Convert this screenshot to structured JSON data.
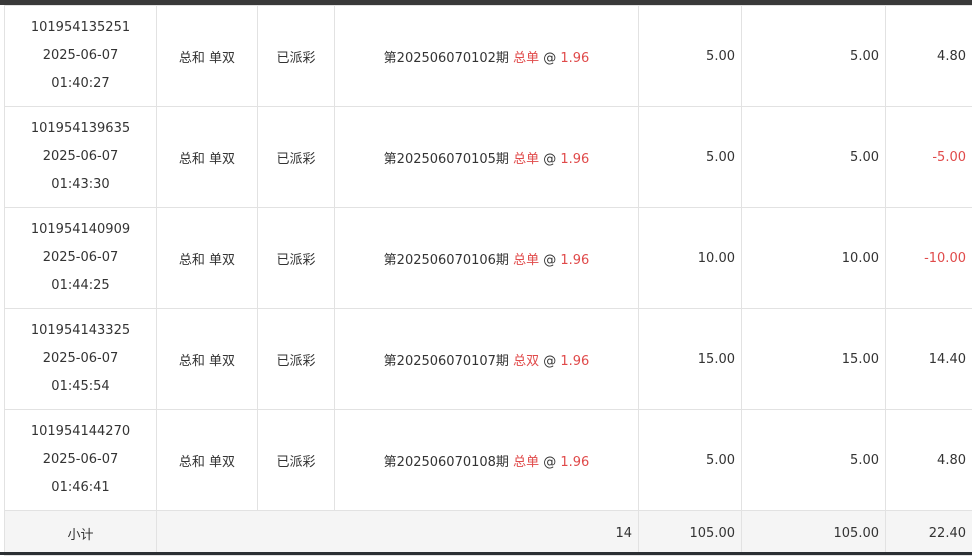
{
  "rows": [
    {
      "id": "101954135251",
      "date": "2025-06-07",
      "time": "01:40:27",
      "play": "总和 单双",
      "status": "已派彩",
      "period": "第202506070102期",
      "pick": "总单",
      "at": "@",
      "odds": "1.96",
      "amount": "5.00",
      "valid": "5.00",
      "result": "4.80",
      "negative": false
    },
    {
      "id": "101954139635",
      "date": "2025-06-07",
      "time": "01:43:30",
      "play": "总和 单双",
      "status": "已派彩",
      "period": "第202506070105期",
      "pick": "总单",
      "at": "@",
      "odds": "1.96",
      "amount": "5.00",
      "valid": "5.00",
      "result": "-5.00",
      "negative": true
    },
    {
      "id": "101954140909",
      "date": "2025-06-07",
      "time": "01:44:25",
      "play": "总和 单双",
      "status": "已派彩",
      "period": "第202506070106期",
      "pick": "总单",
      "at": "@",
      "odds": "1.96",
      "amount": "10.00",
      "valid": "10.00",
      "result": "-10.00",
      "negative": true
    },
    {
      "id": "101954143325",
      "date": "2025-06-07",
      "time": "01:45:54",
      "play": "总和 单双",
      "status": "已派彩",
      "period": "第202506070107期",
      "pick": "总双",
      "at": "@",
      "odds": "1.96",
      "amount": "15.00",
      "valid": "15.00",
      "result": "14.40",
      "negative": false
    },
    {
      "id": "101954144270",
      "date": "2025-06-07",
      "time": "01:46:41",
      "play": "总和 单双",
      "status": "已派彩",
      "period": "第202506070108期",
      "pick": "总单",
      "at": "@",
      "odds": "1.96",
      "amount": "5.00",
      "valid": "5.00",
      "result": "4.80",
      "negative": false
    }
  ],
  "subtotal": {
    "label": "小计",
    "count": "14",
    "amount": "105.00",
    "valid": "105.00",
    "result": "22.40"
  },
  "colors": {
    "accent_red": "#e04a4a",
    "text": "#333333",
    "subtotal_bg": "#f5f5f5"
  }
}
